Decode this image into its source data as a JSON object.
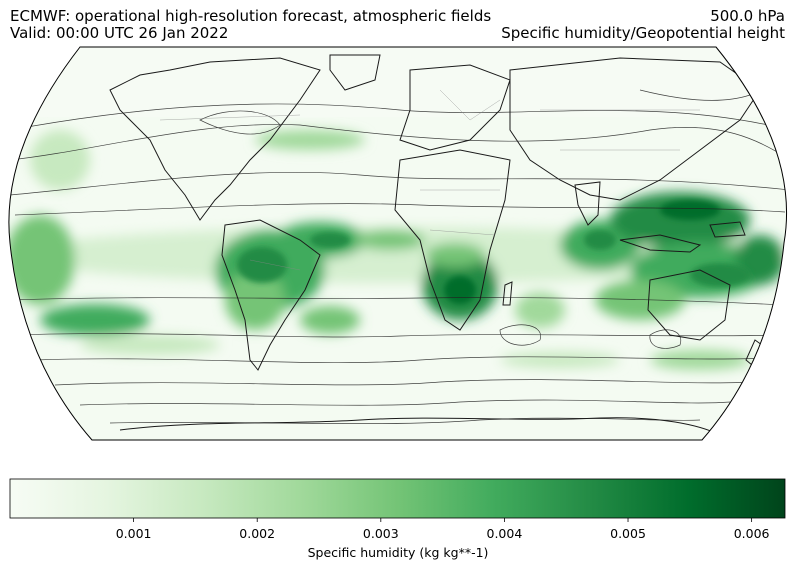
{
  "header": {
    "title_left_line1": "ECMWF: operational high-resolution forecast, atmospheric fields",
    "title_left_line2": "Valid: 00:00 UTC 26 Jan 2022",
    "title_right_line1": "500.0 hPa",
    "title_right_line2": "Specific humidity/Geopotential height"
  },
  "map": {
    "projection": "Robinson",
    "field": "specific humidity",
    "contour_field": "geopotential height",
    "colormap": "Greens",
    "colors": {
      "low": "#f7fcf5",
      "mid": "#74c476",
      "high": "#00441b",
      "contour": "#222222",
      "coastline": "#1a1a1a"
    }
  },
  "colorbar": {
    "label": "Specific humidity (kg kg**-1)",
    "min": 0.0,
    "max": 0.00627,
    "ticks": [
      {
        "value": 0.001,
        "label": "0.001"
      },
      {
        "value": 0.002,
        "label": "0.002"
      },
      {
        "value": 0.003,
        "label": "0.003"
      },
      {
        "value": 0.004,
        "label": "0.004"
      },
      {
        "value": 0.005,
        "label": "0.005"
      },
      {
        "value": 0.006,
        "label": "0.006"
      }
    ]
  }
}
